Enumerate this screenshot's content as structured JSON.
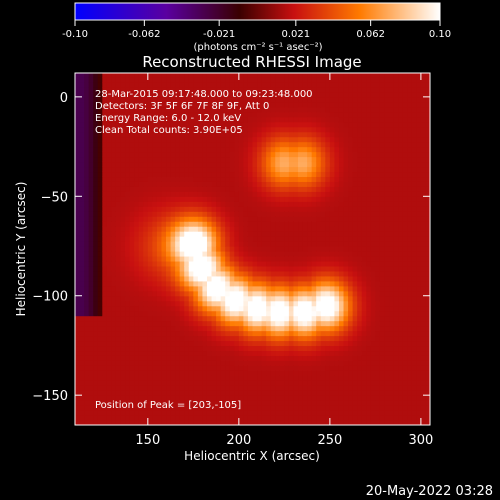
{
  "chart_data": {
    "type": "heatmap",
    "title": "Reconstructed RHESSI Image",
    "xlabel": "Heliocentric X (arcsec)",
    "ylabel": "Heliocentric Y (arcsec)",
    "xlim": [
      110,
      305
    ],
    "ylim": [
      -165,
      12
    ],
    "x_ticks": [
      150,
      200,
      250,
      300
    ],
    "y_ticks": [
      0,
      -50,
      -100,
      -150
    ],
    "colorbar": {
      "colormap": "red-temperature",
      "range": [
        -0.1,
        0.1
      ],
      "tick_values": [
        -0.1,
        -0.062,
        -0.021,
        0.021,
        0.062,
        0.1
      ],
      "tick_labels": [
        "-0.10",
        "-0.062",
        "-0.021",
        "0.021",
        "0.062",
        "0.10"
      ],
      "units_label": "(photons cm⁻² s⁻¹ asec⁻²)"
    },
    "info_lines": [
      "28-Mar-2015 09:17:48.000 to 09:23:48.000",
      "Detectors: 3F 5F 6F 7F 8F 9F, Att 0",
      "Energy Range: 6.0 - 12.0 keV",
      "Clean    Total counts: 3.90E+05"
    ],
    "peak_label": "Position of Peak = [203,-105]",
    "peak": {
      "x": 203,
      "y": -105
    },
    "sources": [
      {
        "name": "arc",
        "points": [
          [
            176,
            -74
          ],
          [
            180,
            -86
          ],
          [
            188,
            -96
          ],
          [
            198,
            -102
          ],
          [
            210,
            -106
          ],
          [
            222,
            -108
          ],
          [
            236,
            -108
          ],
          [
            248,
            -105
          ]
        ],
        "amplitude": 0.1,
        "sigma": 9
      },
      {
        "name": "upper-blob",
        "points": [
          [
            225,
            -33
          ],
          [
            235,
            -33
          ]
        ],
        "amplitude": 0.058,
        "sigma": 9
      },
      {
        "name": "left-blob",
        "points": [
          [
            160,
            -75
          ]
        ],
        "amplitude": 0.022,
        "sigma": 12
      }
    ],
    "background": 0.015
  },
  "footer": {
    "timestamp": "20-May-2022 03:28"
  }
}
